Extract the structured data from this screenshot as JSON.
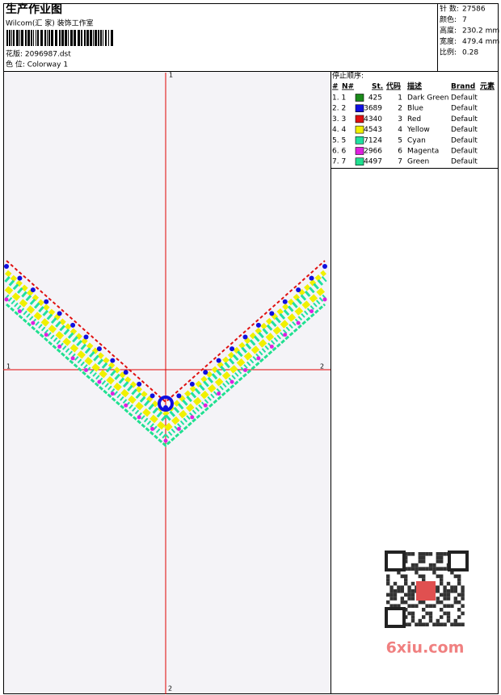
{
  "header": {
    "title": "生产作业图",
    "studio": "Wilcom(汇 家) 装饰工作室",
    "design": "花版: 2096987.dst",
    "colorway": "色 位: Colorway 1"
  },
  "stats": [
    {
      "label": "针 数:",
      "value": "27586"
    },
    {
      "label": "颜色:",
      "value": "7"
    },
    {
      "label": "高度:",
      "value": "230.2 mm"
    },
    {
      "label": "宽度:",
      "value": "479.4 mm"
    },
    {
      "label": "比例:",
      "value": "0.28"
    }
  ],
  "axis_labels": {
    "top": "1",
    "bottom": "2",
    "left": "1",
    "right": "2"
  },
  "sequence": {
    "title": "停止顺序:",
    "columns": [
      "#",
      "N#",
      "St.",
      "代码",
      "描述",
      "Brand",
      "元素"
    ],
    "rows": [
      {
        "num": "1. 1",
        "color": "#1a8a1a",
        "stitches": "425",
        "code": "1",
        "name": "Dark Green",
        "brand": "Default"
      },
      {
        "num": "2. 2",
        "color": "#1010e0",
        "stitches": "3689",
        "code": "2",
        "name": "Blue",
        "brand": "Default"
      },
      {
        "num": "3. 3",
        "color": "#e01010",
        "stitches": "4340",
        "code": "3",
        "name": "Red",
        "brand": "Default"
      },
      {
        "num": "4. 4",
        "color": "#f0f000",
        "stitches": "4543",
        "code": "4",
        "name": "Yellow",
        "brand": "Default"
      },
      {
        "num": "5. 5",
        "color": "#20e0a0",
        "stitches": "7124",
        "code": "5",
        "name": "Cyan",
        "brand": "Default"
      },
      {
        "num": "6. 6",
        "color": "#e020e0",
        "stitches": "2966",
        "code": "6",
        "name": "Magenta",
        "brand": "Default"
      },
      {
        "num": "7. 7",
        "color": "#20e090",
        "stitches": "4497",
        "code": "7",
        "name": "Green",
        "brand": "Default"
      }
    ]
  },
  "watermark": "6xiu.com"
}
